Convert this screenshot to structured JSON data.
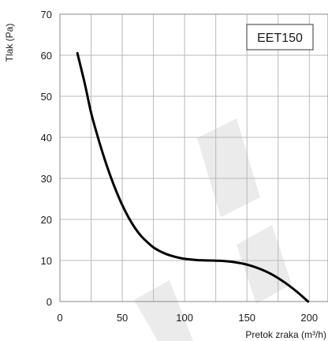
{
  "chart_data": {
    "type": "line",
    "title": "",
    "xlabel": "Pretok zraka (m³/h)",
    "ylabel": "Tlak (Pa)",
    "xlim": [
      0,
      215
    ],
    "ylim": [
      0,
      70
    ],
    "x_ticks": [
      0,
      50,
      100,
      150,
      200
    ],
    "y_ticks": [
      0,
      10,
      20,
      30,
      40,
      50,
      60,
      70
    ],
    "x_grid": [
      0,
      25,
      50,
      75,
      100,
      125,
      150,
      175,
      200
    ],
    "grid": true,
    "legend_label": "EET150",
    "legend_position": "top-right",
    "series": [
      {
        "name": "EET150",
        "color": "#000000",
        "points": [
          [
            14,
            60.5
          ],
          [
            20,
            53
          ],
          [
            25,
            46
          ],
          [
            30,
            40.5
          ],
          [
            35,
            35.5
          ],
          [
            40,
            31
          ],
          [
            45,
            27
          ],
          [
            50,
            23.5
          ],
          [
            55,
            20.5
          ],
          [
            60,
            18
          ],
          [
            65,
            16
          ],
          [
            70,
            14.5
          ],
          [
            75,
            13.2
          ],
          [
            80,
            12.3
          ],
          [
            85,
            11.6
          ],
          [
            90,
            11.1
          ],
          [
            95,
            10.7
          ],
          [
            100,
            10.4
          ],
          [
            110,
            10.1
          ],
          [
            120,
            10
          ],
          [
            130,
            9.9
          ],
          [
            140,
            9.6
          ],
          [
            150,
            9.0
          ],
          [
            160,
            8.0
          ],
          [
            170,
            6.6
          ],
          [
            180,
            4.7
          ],
          [
            190,
            2.4
          ],
          [
            199,
            0
          ]
        ]
      }
    ]
  }
}
